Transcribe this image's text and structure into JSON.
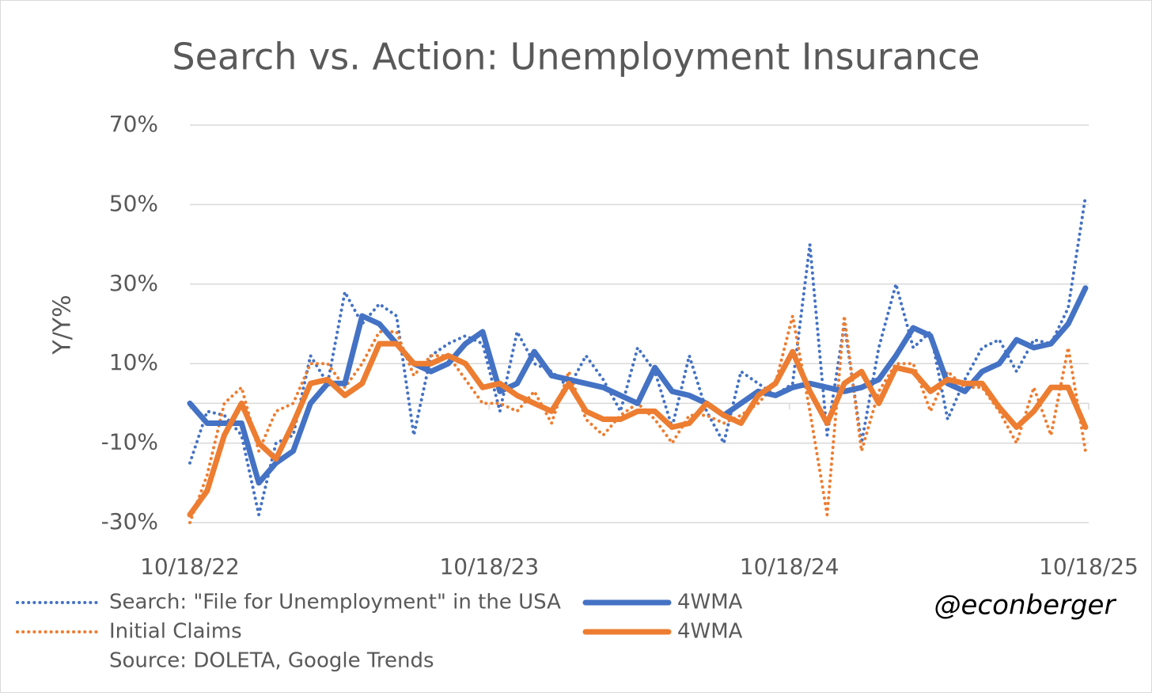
{
  "chart_data": {
    "type": "line",
    "title": "Search vs. Action: Unemployment Insurance",
    "y_label": "Y/Y%",
    "source": "Source: DOLETA, Google Trends",
    "watermark": "@econberger",
    "ylim": [
      -30,
      70
    ],
    "yticks": [
      {
        "value": -30,
        "label": "-30%"
      },
      {
        "value": -10,
        "label": "-10%"
      },
      {
        "value": 10,
        "label": "10%"
      },
      {
        "value": 30,
        "label": "30%"
      },
      {
        "value": 50,
        "label": "50%"
      },
      {
        "value": 70,
        "label": "70%"
      }
    ],
    "xlim": [
      0,
      1096
    ],
    "xticks": [
      {
        "value": 0,
        "label": "10/18/22"
      },
      {
        "value": 365,
        "label": "10/18/23"
      },
      {
        "value": 731,
        "label": "10/18/24"
      },
      {
        "value": 1096,
        "label": "10/18/25"
      }
    ],
    "grid": true,
    "x": [
      0,
      21,
      42,
      63,
      84,
      105,
      126,
      147,
      168,
      189,
      210,
      231,
      252,
      273,
      294,
      315,
      336,
      357,
      378,
      399,
      420,
      441,
      462,
      483,
      504,
      525,
      546,
      567,
      588,
      609,
      630,
      651,
      672,
      693,
      714,
      735,
      756,
      777,
      798,
      819,
      840,
      861,
      882,
      903,
      924,
      945,
      966,
      987,
      1008,
      1029,
      1050,
      1071,
      1092
    ],
    "series": [
      {
        "name": "Search: \"File for Unemployment\" in the USA",
        "color": "#4472c4",
        "dashed": true,
        "values": [
          -15,
          -2,
          -3,
          -8,
          -28,
          -10,
          -8,
          12,
          5,
          28,
          20,
          25,
          22,
          -8,
          12,
          15,
          17,
          15,
          -2,
          18,
          10,
          8,
          4,
          12,
          6,
          -2,
          14,
          8,
          -6,
          12,
          -2,
          -10,
          8,
          5,
          2,
          5,
          40,
          -8,
          20,
          -10,
          14,
          30,
          14,
          18,
          -4,
          6,
          14,
          16,
          8,
          16,
          15,
          24,
          52
        ]
      },
      {
        "name": "4WMA",
        "color": "#4472c4",
        "dashed": false,
        "values": [
          0,
          -5,
          -5,
          -5,
          -20,
          -15,
          -12,
          0,
          5,
          5,
          22,
          20,
          15,
          10,
          8,
          10,
          15,
          18,
          3,
          5,
          13,
          7,
          6,
          5,
          4,
          2,
          0,
          9,
          3,
          2,
          0,
          -3,
          0,
          3,
          2,
          4,
          5,
          4,
          3,
          4,
          6,
          12,
          19,
          17,
          5,
          3,
          8,
          10,
          16,
          14,
          15,
          20,
          29
        ]
      },
      {
        "name": "Initial Claims",
        "color": "#ed7d31",
        "dashed": true,
        "values": [
          -30,
          -18,
          0,
          4,
          -12,
          -2,
          0,
          10,
          10,
          4,
          10,
          18,
          18,
          7,
          12,
          12,
          6,
          0,
          0,
          -2,
          3,
          -5,
          8,
          -4,
          -8,
          -3,
          0,
          -4,
          -10,
          -3,
          -3,
          -5,
          -3,
          0,
          5,
          22,
          -2,
          -28,
          22,
          -12,
          3,
          10,
          10,
          -2,
          8,
          4,
          4,
          -2,
          -10,
          4,
          -8,
          14,
          -12
        ]
      },
      {
        "name": "4WMA",
        "color": "#ed7d31",
        "dashed": false,
        "values": [
          -28,
          -22,
          -8,
          0,
          -10,
          -14,
          -5,
          5,
          6,
          2,
          5,
          15,
          15,
          10,
          10,
          12,
          10,
          4,
          5,
          2,
          0,
          -2,
          5,
          -2,
          -4,
          -4,
          -2,
          -2,
          -6,
          -5,
          0,
          -3,
          -5,
          2,
          5,
          13,
          3,
          -5,
          5,
          8,
          0,
          9,
          8,
          3,
          6,
          5,
          5,
          -1,
          -6,
          -2,
          4,
          4,
          -6
        ]
      }
    ]
  }
}
